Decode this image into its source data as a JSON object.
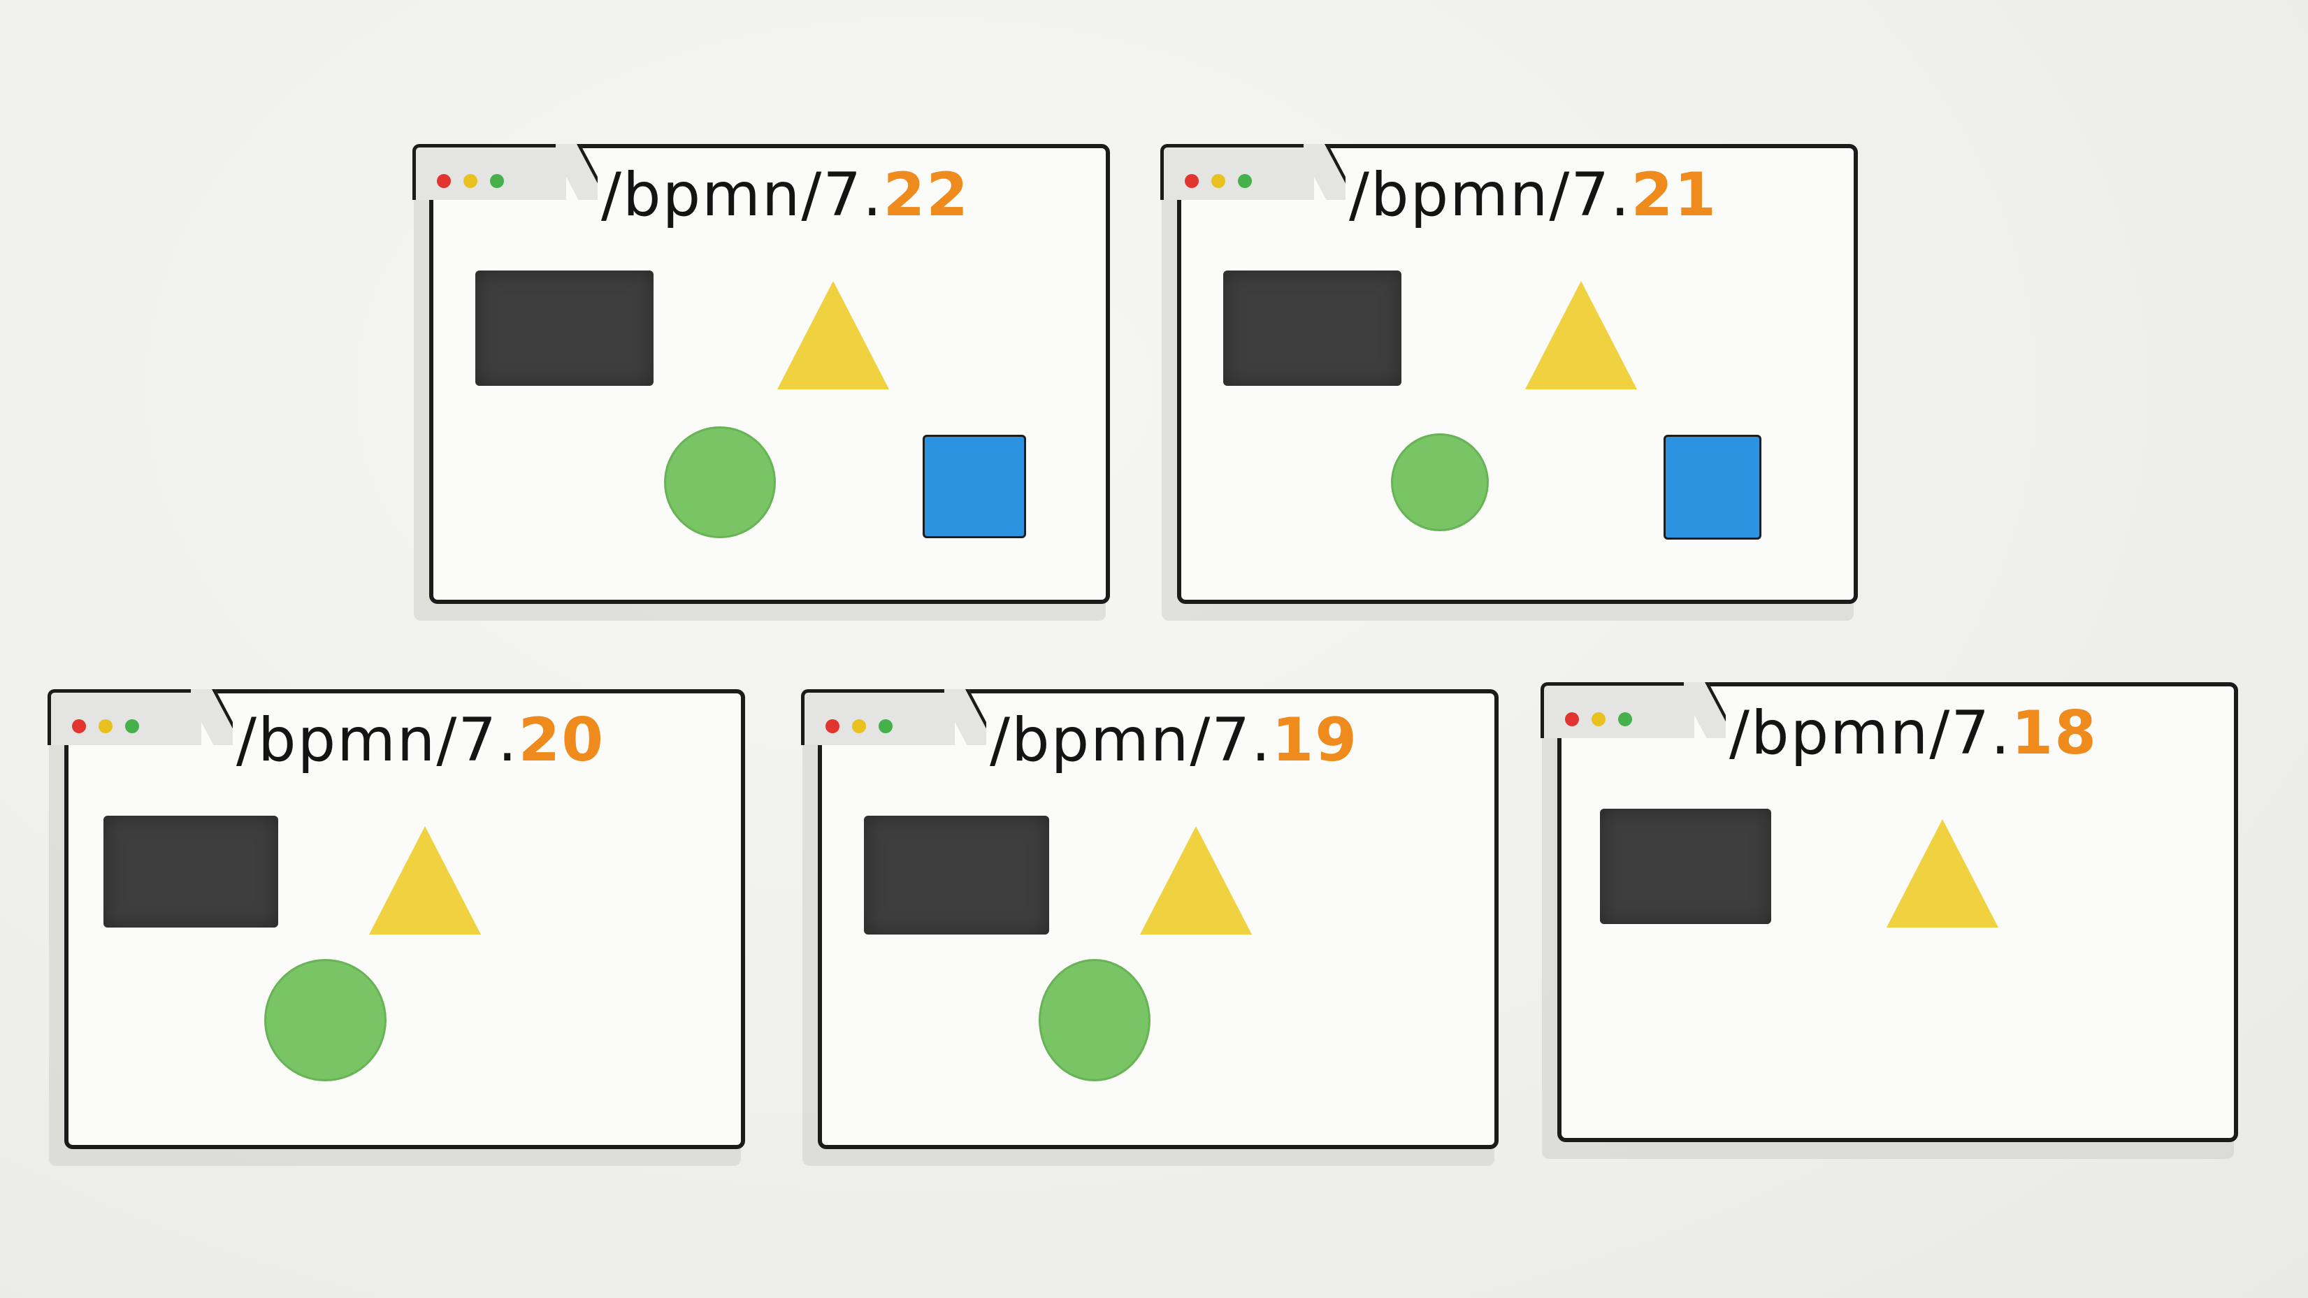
{
  "url_prefix": "/bpmn/7.",
  "colors": {
    "version_accent": "#ef8a1c",
    "rectangle": "#3e3e3e",
    "triangle": "#f0d240",
    "circle": "#79c565",
    "square": "#2b93e0"
  },
  "windows": [
    {
      "version": "22",
      "shapes": [
        "rectangle",
        "triangle",
        "circle",
        "square"
      ]
    },
    {
      "version": "21",
      "shapes": [
        "rectangle",
        "triangle",
        "circle",
        "square"
      ]
    },
    {
      "version": "20",
      "shapes": [
        "rectangle",
        "triangle",
        "circle"
      ]
    },
    {
      "version": "19",
      "shapes": [
        "rectangle",
        "triangle",
        "circle"
      ]
    },
    {
      "version": "18",
      "shapes": [
        "rectangle",
        "triangle"
      ]
    }
  ]
}
